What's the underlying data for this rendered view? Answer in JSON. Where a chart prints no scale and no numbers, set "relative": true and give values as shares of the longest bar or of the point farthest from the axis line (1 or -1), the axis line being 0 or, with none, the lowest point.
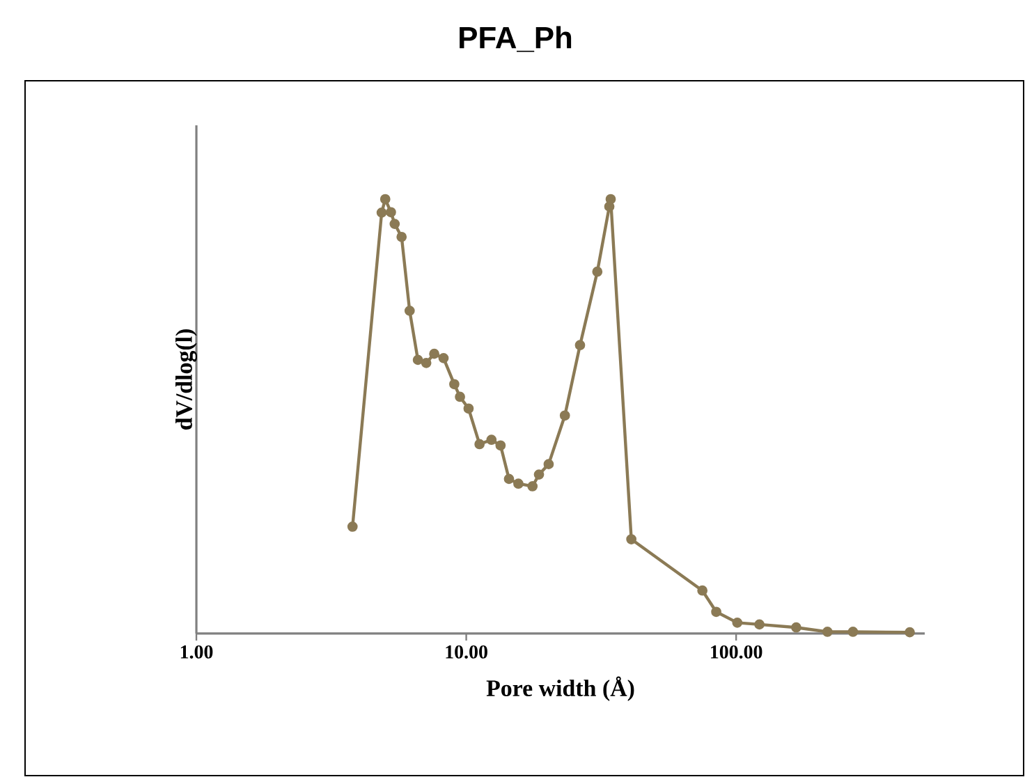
{
  "chart_data": {
    "type": "line",
    "title": "PFA_Ph",
    "xlabel": "Pore width (Å)",
    "ylabel": "dV/dlog(l)",
    "log": "x",
    "relative": true,
    "marker": "circle",
    "line_style": "solid",
    "grid": false,
    "xlim": [
      1,
      500
    ],
    "xticks": [
      {
        "value": 1,
        "label": "1.00"
      },
      {
        "value": 10,
        "label": "10.00"
      },
      {
        "value": 100,
        "label": "100.00"
      }
    ],
    "series": [
      {
        "color": "#8b7a55",
        "x": [
          3.79,
          4.86,
          5.01,
          5.26,
          5.43,
          5.76,
          6.17,
          6.62,
          7.11,
          7.61,
          8.24,
          9.03,
          9.48,
          10.2,
          11.2,
          12.4,
          13.4,
          14.4,
          15.6,
          17.6,
          18.6,
          20.2,
          23.2,
          26.4,
          30.6,
          33.9,
          34.3,
          40.9,
          75.0,
          84.4,
          101,
          122,
          167,
          218,
          271,
          440
        ],
        "values": [
          0.246,
          0.969,
          1.0,
          0.97,
          0.943,
          0.913,
          0.743,
          0.63,
          0.623,
          0.644,
          0.634,
          0.574,
          0.545,
          0.518,
          0.436,
          0.446,
          0.433,
          0.356,
          0.345,
          0.339,
          0.366,
          0.39,
          0.502,
          0.664,
          0.833,
          0.983,
          1.0,
          0.217,
          0.099,
          0.05,
          0.025,
          0.021,
          0.014,
          0.004,
          0.004,
          0.003
        ]
      }
    ]
  }
}
